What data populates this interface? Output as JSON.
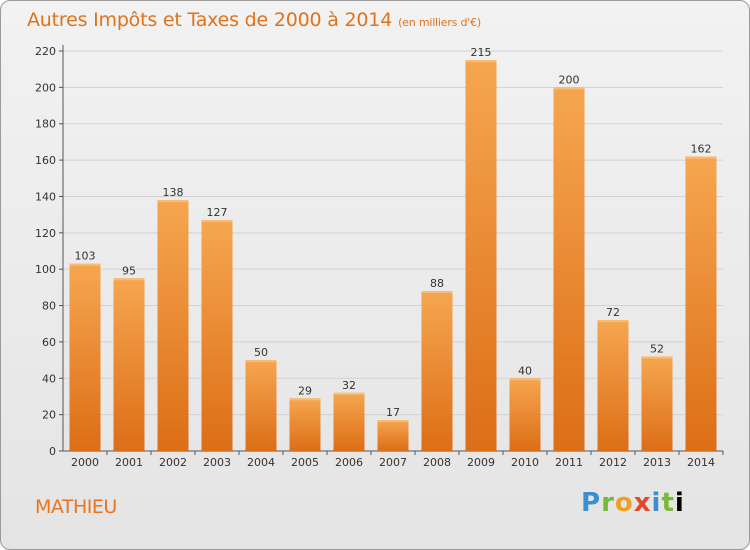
{
  "title": "Autres Impôts et Taxes de 2000 à 2014",
  "unit": "(en milliers d'€)",
  "commune": "MATHIEU",
  "logo": {
    "letters": [
      "P",
      "r",
      "o",
      "x",
      "i",
      "t",
      "i"
    ]
  },
  "colors": {
    "bar": "#f08a2c",
    "bar_light": "#f5a24c",
    "bar_dark": "#d86a12",
    "title": "#e0731a"
  },
  "chart_data": {
    "type": "bar",
    "title": "Autres Impôts et Taxes de 2000 à 2014",
    "xlabel": "",
    "ylabel": "",
    "categories": [
      "2000",
      "2001",
      "2002",
      "2003",
      "2004",
      "2005",
      "2006",
      "2007",
      "2008",
      "2009",
      "2010",
      "2011",
      "2012",
      "2013",
      "2014"
    ],
    "values": [
      103,
      95,
      138,
      127,
      50,
      29,
      32,
      17,
      88,
      215,
      40,
      200,
      72,
      52,
      162
    ],
    "ylim": [
      0,
      220
    ],
    "yticks": [
      0,
      20,
      40,
      60,
      80,
      100,
      120,
      140,
      160,
      180,
      200,
      220
    ],
    "grid": true,
    "legend": "none"
  }
}
